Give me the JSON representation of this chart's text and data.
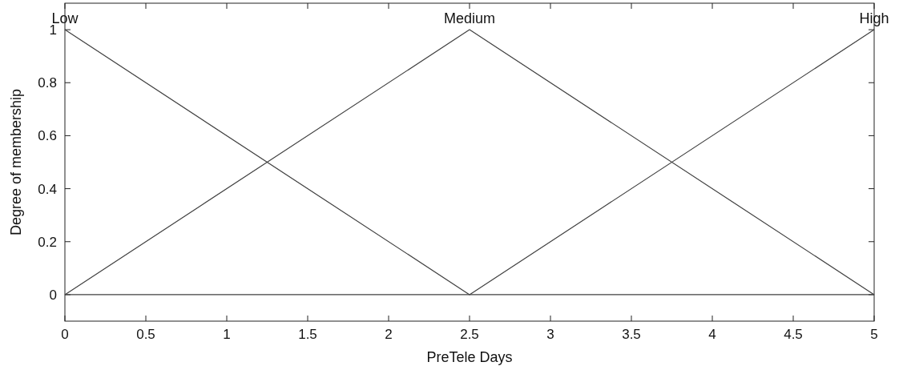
{
  "chart_data": {
    "type": "line",
    "xlabel": "PreTele Days",
    "ylabel": "Degree of membership",
    "x": [
      0,
      2.5,
      5
    ],
    "series": [
      {
        "name": "Low",
        "color": "#404040",
        "values": [
          1,
          0,
          0
        ]
      },
      {
        "name": "Medium",
        "color": "#404040",
        "values": [
          0,
          1,
          0
        ]
      },
      {
        "name": "High",
        "color": "#404040",
        "values": [
          0,
          0,
          1
        ]
      }
    ],
    "xlim": [
      0,
      5
    ],
    "xticks": [
      0,
      0.5,
      1,
      1.5,
      2,
      2.5,
      3,
      3.5,
      4,
      4.5,
      5
    ],
    "ylim": [
      -0.1,
      1.1
    ],
    "yticks": [
      0,
      0.2,
      0.4,
      0.6,
      0.8,
      1
    ]
  }
}
